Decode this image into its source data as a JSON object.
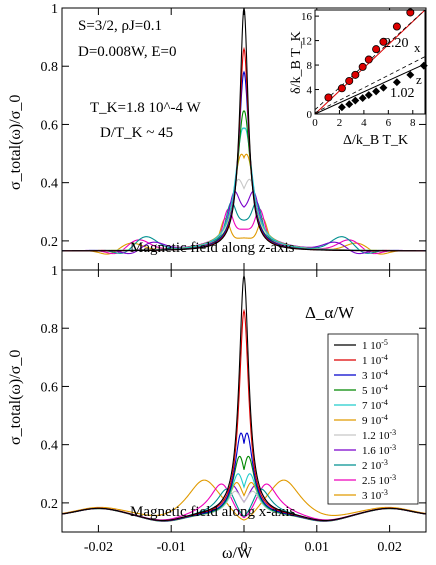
{
  "chart_data": [
    {
      "type": "line",
      "title": "",
      "xlabel": "",
      "ylabel": "σ_total(ω)/σ_0",
      "xlim": [
        -0.025,
        0.025
      ],
      "ylim": [
        0.1,
        1.0
      ],
      "xticks": [
        -0.02,
        -0.01,
        0,
        0.01,
        0.02
      ],
      "yticks": [
        {
          "v": 0.2,
          "label": "0.2"
        },
        {
          "v": 0.4,
          "label": "0.4"
        },
        {
          "v": 0.6,
          "label": "0.6"
        },
        {
          "v": 0.8,
          "label": "0.8"
        },
        {
          "v": 1.0,
          "label": "1"
        }
      ],
      "annotations": {
        "params_line1": "S=3/2, ρJ=0.1",
        "params_line2": "D=0.008W, E=0",
        "tk_line": "T_K=1.8 10^-4 W",
        "ratio_line": "D/T_K ~ 45",
        "field_label": "Magnetic field along z-axis"
      },
      "series": [
        {
          "label": "1 10^-5",
          "color": "#000000",
          "peak": 1.0,
          "width": 0.0007,
          "satellite": 0.0,
          "sat_height": 0.0
        },
        {
          "label": "1 10^-4",
          "color": "#dd0000",
          "peak": 0.86,
          "width": 0.0008,
          "satellite": 0.0,
          "sat_height": 0.0
        },
        {
          "label": "3 10^-4",
          "color": "#0000cc",
          "peak": 0.78,
          "width": 0.0009,
          "satellite": 0.0,
          "sat_height": 0.0
        },
        {
          "label": "5 10^-4",
          "color": "#008800",
          "peak": 0.62,
          "width": 0.0011,
          "satellite": 0.0003,
          "sat_height": 0.03
        },
        {
          "label": "7 10^-4",
          "color": "#22cccc",
          "peak": 0.55,
          "width": 0.0014,
          "satellite": 0.0005,
          "sat_height": 0.05
        },
        {
          "label": "9 10^-4",
          "color": "#e09a00",
          "peak": 0.45,
          "width": 0.0017,
          "satellite": 0.0007,
          "sat_height": 0.07
        },
        {
          "label": "1.2 10^-3",
          "color": "#c8c8c8",
          "peak": 0.36,
          "width": 0.0021,
          "satellite": 0.001,
          "sat_height": 0.08
        },
        {
          "label": "1.6 10^-3",
          "color": "#7a00cc",
          "peak": 0.31,
          "width": 0.0026,
          "satellite": 0.0014,
          "sat_height": 0.09
        },
        {
          "label": "2 10^-3",
          "color": "#009090",
          "peak": 0.27,
          "width": 0.003,
          "satellite": 0.0018,
          "sat_height": 0.09
        },
        {
          "label": "2.5 10^-3",
          "color": "#ee00bb",
          "peak": 0.24,
          "width": 0.0035,
          "satellite": 0.0022,
          "sat_height": 0.09
        },
        {
          "label": "3 10^-3",
          "color": "#e09a00",
          "peak": 0.21,
          "width": 0.004,
          "satellite": 0.0026,
          "sat_height": 0.08
        }
      ],
      "side_peaks": [
        {
          "pos": 0.0125,
          "height": 0.19,
          "color": "#e09a00"
        },
        {
          "pos": 0.0135,
          "height": 0.21,
          "color": "#ee00bb"
        },
        {
          "pos": 0.0145,
          "height": 0.2,
          "color": "#7a00cc"
        },
        {
          "pos": 0.0155,
          "height": 0.19,
          "color": "#009090"
        }
      ],
      "baseline": 0.165
    },
    {
      "type": "line",
      "title": "",
      "xlabel": "ω/W",
      "ylabel": "σ_total(ω)/σ_0",
      "xlim": [
        -0.025,
        0.025
      ],
      "ylim": [
        0.1,
        1.0
      ],
      "xticks": [
        {
          "v": -0.02,
          "label": "-0.02"
        },
        {
          "v": -0.01,
          "label": "-0.01"
        },
        {
          "v": 0,
          "label": "0"
        },
        {
          "v": 0.01,
          "label": "0.01"
        },
        {
          "v": 0.02,
          "label": "0.02"
        }
      ],
      "yticks": [
        {
          "v": 0.2,
          "label": "0.2"
        },
        {
          "v": 0.4,
          "label": "0.4"
        },
        {
          "v": 0.6,
          "label": "0.6"
        },
        {
          "v": 0.8,
          "label": "0.8"
        },
        {
          "v": 1.0,
          "label": "1"
        }
      ],
      "annotations": {
        "legend_title": "Δ_α/W",
        "field_label": "Magnetic field along x-axis"
      },
      "series": [
        {
          "label": "1 10^-5",
          "color": "#000000",
          "peak": 0.98,
          "satellite": 0.0,
          "sat_height": 0.0
        },
        {
          "label": "1 10^-4",
          "color": "#dd0000",
          "peak": 0.86,
          "satellite": 0.0,
          "sat_height": 0.0
        },
        {
          "label": "3 10^-4",
          "color": "#0000cc",
          "peak": 0.44,
          "satellite": 0.0004,
          "sat_height": 0.0
        },
        {
          "label": "5 10^-4",
          "color": "#008800",
          "peak": 0.36,
          "satellite": 0.0006,
          "sat_height": 0.0
        },
        {
          "label": "7 10^-4",
          "color": "#22cccc",
          "peak": 0.3,
          "satellite": 0.0008,
          "sat_height": 0.0
        },
        {
          "label": "9 10^-4",
          "color": "#e09a00",
          "peak": 0.27,
          "satellite": 0.001,
          "sat_height": 0.0
        },
        {
          "label": "1.2 10^-3",
          "color": "#c8c8c8",
          "peak": 0.24,
          "satellite": 0.0012,
          "sat_height": 0.0
        },
        {
          "label": "1.6 10^-3",
          "color": "#7a00cc",
          "peak": 0.26,
          "satellite": 0.0016,
          "sat_height": 0.0
        },
        {
          "label": "2 10^-3",
          "color": "#009090",
          "peak": 0.26,
          "satellite": 0.0022,
          "sat_height": 0.0
        },
        {
          "label": "2.5 10^-3",
          "color": "#ee00bb",
          "peak": 0.27,
          "satellite": 0.003,
          "sat_height": 0.0
        },
        {
          "label": "3 10^-3",
          "color": "#e09a00",
          "peak": 0.28,
          "satellite": 0.0055,
          "sat_height": 0.0
        }
      ],
      "baseline": 0.155
    },
    {
      "type": "scatter",
      "title": "",
      "xlabel": "Δ/k_B T_K",
      "ylabel": "δ/k_B T_K",
      "xlim": [
        0,
        9
      ],
      "ylim": [
        0,
        17
      ],
      "xticks": [
        {
          "v": 0,
          "label": "0"
        },
        {
          "v": 2,
          "label": "2"
        },
        {
          "v": 4,
          "label": "4"
        },
        {
          "v": 6,
          "label": "6"
        },
        {
          "v": 8,
          "label": "8"
        }
      ],
      "yticks": [
        {
          "v": 0,
          "label": "0"
        },
        {
          "v": 4,
          "label": "4"
        },
        {
          "v": 8,
          "label": "8"
        },
        {
          "v": 12,
          "label": "12"
        },
        {
          "v": 16,
          "label": "16"
        }
      ],
      "series": [
        {
          "name": "x",
          "slope_label": "2.20",
          "color": "#dd0000",
          "marker": "circle",
          "x": [
            1.1,
            2.2,
            2.8,
            3.3,
            3.9,
            4.4,
            5.0,
            5.6,
            6.7,
            7.8
          ],
          "y": [
            2.7,
            4.2,
            5.4,
            6.4,
            7.7,
            8.9,
            10.6,
            11.8,
            14.3,
            16.6
          ],
          "fit_slope": 2.2,
          "fit_intercept": -0.5
        },
        {
          "name": "z",
          "slope_label": "1.02",
          "color": "#000000",
          "marker": "diamond",
          "x": [
            2.2,
            2.8,
            3.3,
            3.9,
            4.4,
            5.0,
            5.6,
            6.7,
            7.8,
            8.9
          ],
          "y": [
            1.1,
            1.6,
            2.2,
            2.6,
            3.1,
            3.7,
            4.3,
            5.2,
            6.4,
            7.9
          ],
          "fit_slope": 1.02,
          "fit_intercept": -1.0
        }
      ]
    }
  ]
}
